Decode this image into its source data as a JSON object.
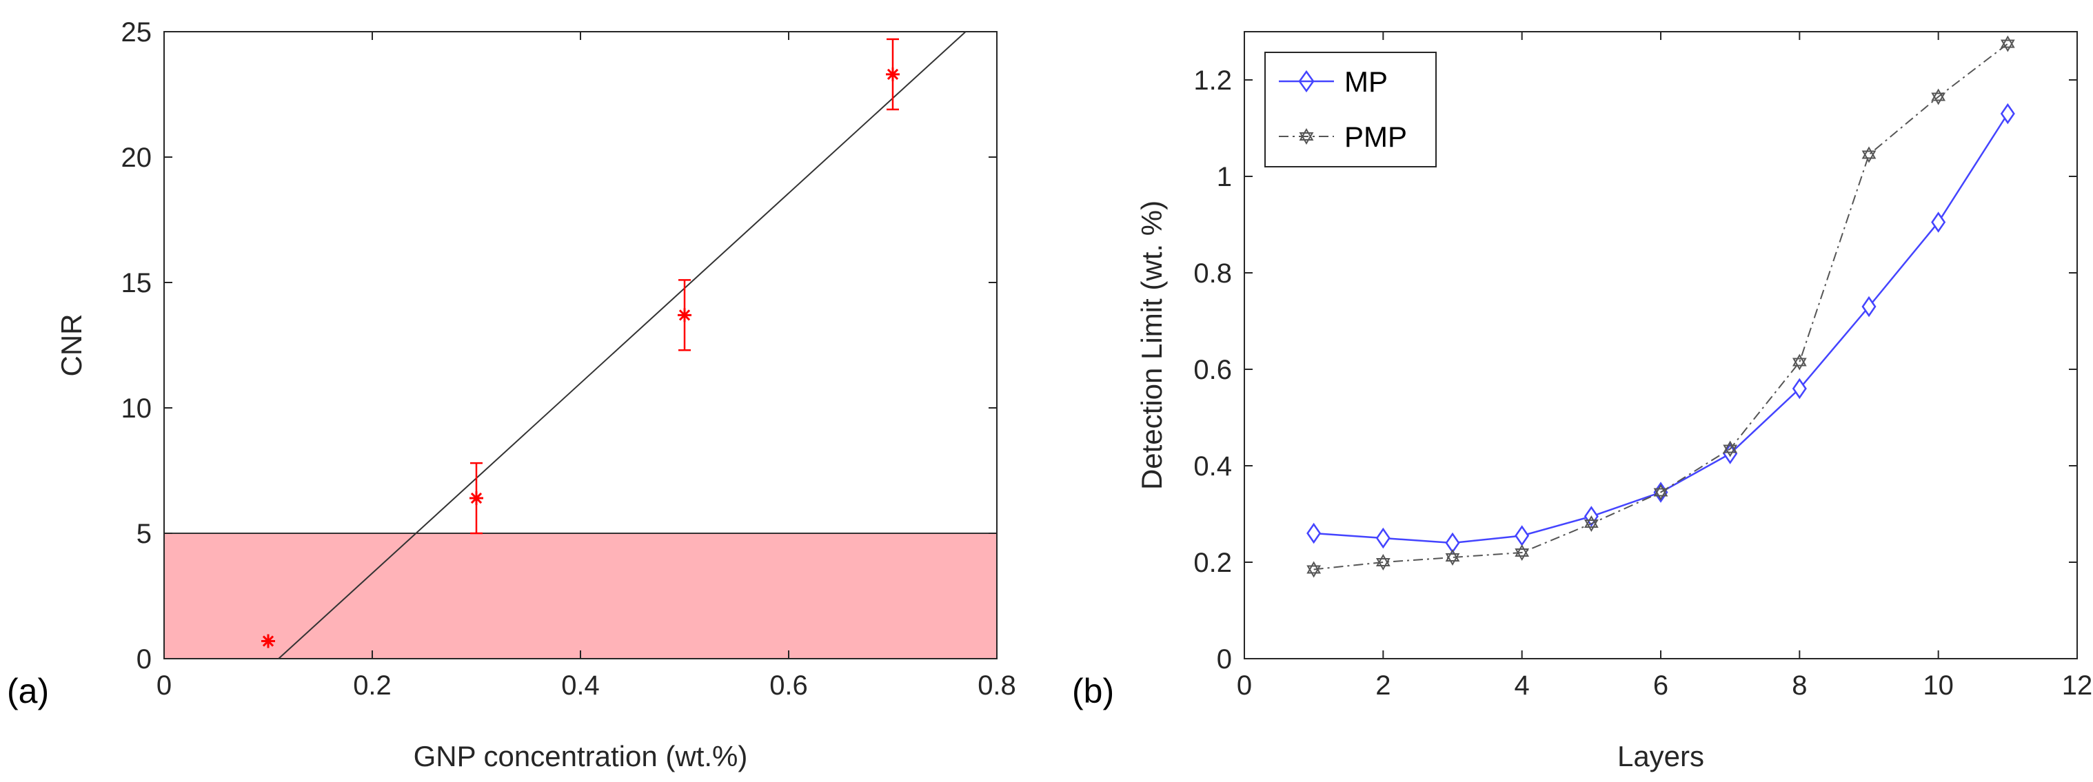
{
  "colors": {
    "threshold_band": "#ffb3b8",
    "marker_red": "#ff0000",
    "fit_line": "#333333",
    "mp_blue": "#4444ff",
    "pmp_gray": "#555555",
    "axis": "#262626"
  },
  "chart_data": [
    {
      "id": "a",
      "type": "scatter",
      "panel_label": "(a)",
      "xlabel": "GNP concentration (wt.%)",
      "ylabel": "CNR",
      "xlim": [
        0,
        0.8
      ],
      "ylim": [
        0,
        25
      ],
      "xticks": [
        0,
        0.2,
        0.4,
        0.6,
        0.8
      ],
      "xtick_labels": [
        "0",
        "0.2",
        "0.4",
        "0.6",
        "0.8"
      ],
      "yticks": [
        0,
        5,
        10,
        15,
        20,
        25
      ],
      "ytick_labels": [
        "0",
        "5",
        "10",
        "15",
        "20",
        "25"
      ],
      "threshold_band": {
        "y_from": 0,
        "y_to": 5
      },
      "points": [
        {
          "x": 0.1,
          "y": 0.7,
          "err": null
        },
        {
          "x": 0.3,
          "y": 6.4,
          "err": 1.4
        },
        {
          "x": 0.5,
          "y": 13.7,
          "err": 1.4
        },
        {
          "x": 0.7,
          "y": 23.3,
          "err": 1.4
        }
      ],
      "fit_line": {
        "x1": 0.11,
        "y1": 0,
        "x2": 0.77,
        "y2": 25
      }
    },
    {
      "id": "b",
      "type": "line",
      "panel_label": "(b)",
      "xlabel": "Layers",
      "ylabel": "Detection Limit (wt. %)",
      "xlim": [
        0,
        12
      ],
      "ylim": [
        0,
        1.3
      ],
      "xticks": [
        0,
        2,
        4,
        6,
        8,
        10,
        12
      ],
      "xtick_labels": [
        "0",
        "2",
        "4",
        "6",
        "8",
        "10",
        "12"
      ],
      "yticks": [
        0,
        0.2,
        0.4,
        0.6,
        0.8,
        1.0,
        1.2
      ],
      "ytick_labels": [
        "0",
        "0.2",
        "0.4",
        "0.6",
        "0.8",
        "1",
        "1.2"
      ],
      "legend_position": "top-left",
      "x": [
        1,
        2,
        3,
        4,
        5,
        6,
        7,
        8,
        9,
        10,
        11
      ],
      "series": [
        {
          "name": "MP",
          "style": "solid",
          "marker": "diamond",
          "values": [
            0.26,
            0.25,
            0.24,
            0.255,
            0.295,
            0.345,
            0.425,
            0.56,
            0.73,
            0.905,
            1.13
          ]
        },
        {
          "name": "PMP",
          "style": "dashdot",
          "marker": "hexagram",
          "values": [
            0.185,
            0.2,
            0.21,
            0.22,
            0.28,
            0.345,
            0.435,
            0.615,
            1.045,
            1.165,
            1.275
          ]
        }
      ]
    }
  ]
}
